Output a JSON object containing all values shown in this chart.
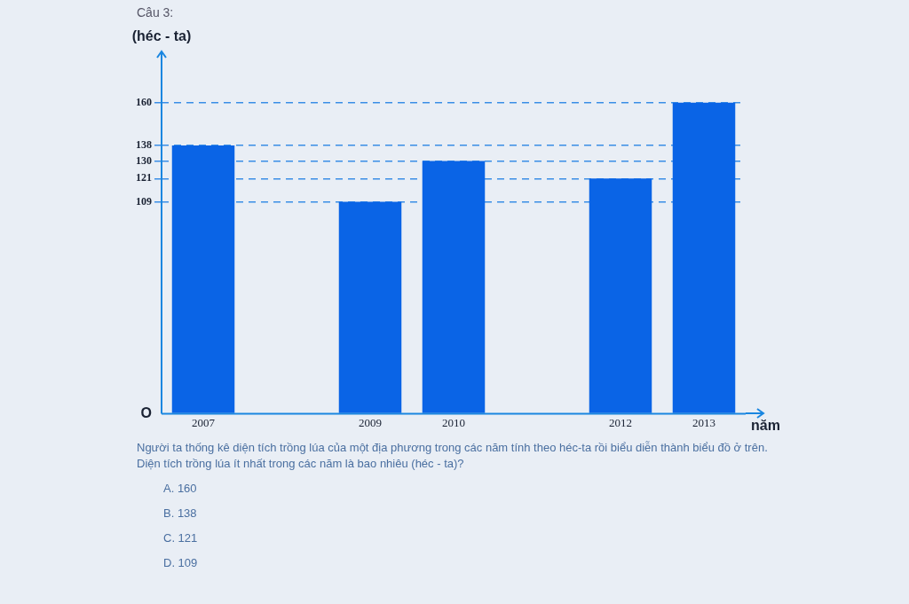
{
  "chart_data": {
    "type": "bar",
    "title": "Câu 3:",
    "xlabel": "năm",
    "ylabel": "(héc - ta)",
    "categories": [
      "2007",
      null,
      "2009",
      "2010",
      null,
      "2012",
      "2013"
    ],
    "values": [
      138,
      null,
      109,
      130,
      null,
      121,
      160
    ],
    "color": "#0a64e6",
    "ylim": [
      0,
      180
    ],
    "yticks": [
      {
        "value": 0,
        "label": "O"
      },
      109,
      121,
      130,
      138,
      160
    ],
    "grid": "y",
    "legend": false,
    "annotations": [
      "Người ta thống kê diện tích trồng lúa của một địa phương trong các năm tính theo héc-ta rồi biểu diễn thành biểu đồ ở trên.",
      "Diện tích trồng lúa ít nhất trong các năm là bao nhiêu (héc - ta)?",
      "A. 160",
      "B. 138",
      "C. 121",
      "D. 109"
    ]
  }
}
